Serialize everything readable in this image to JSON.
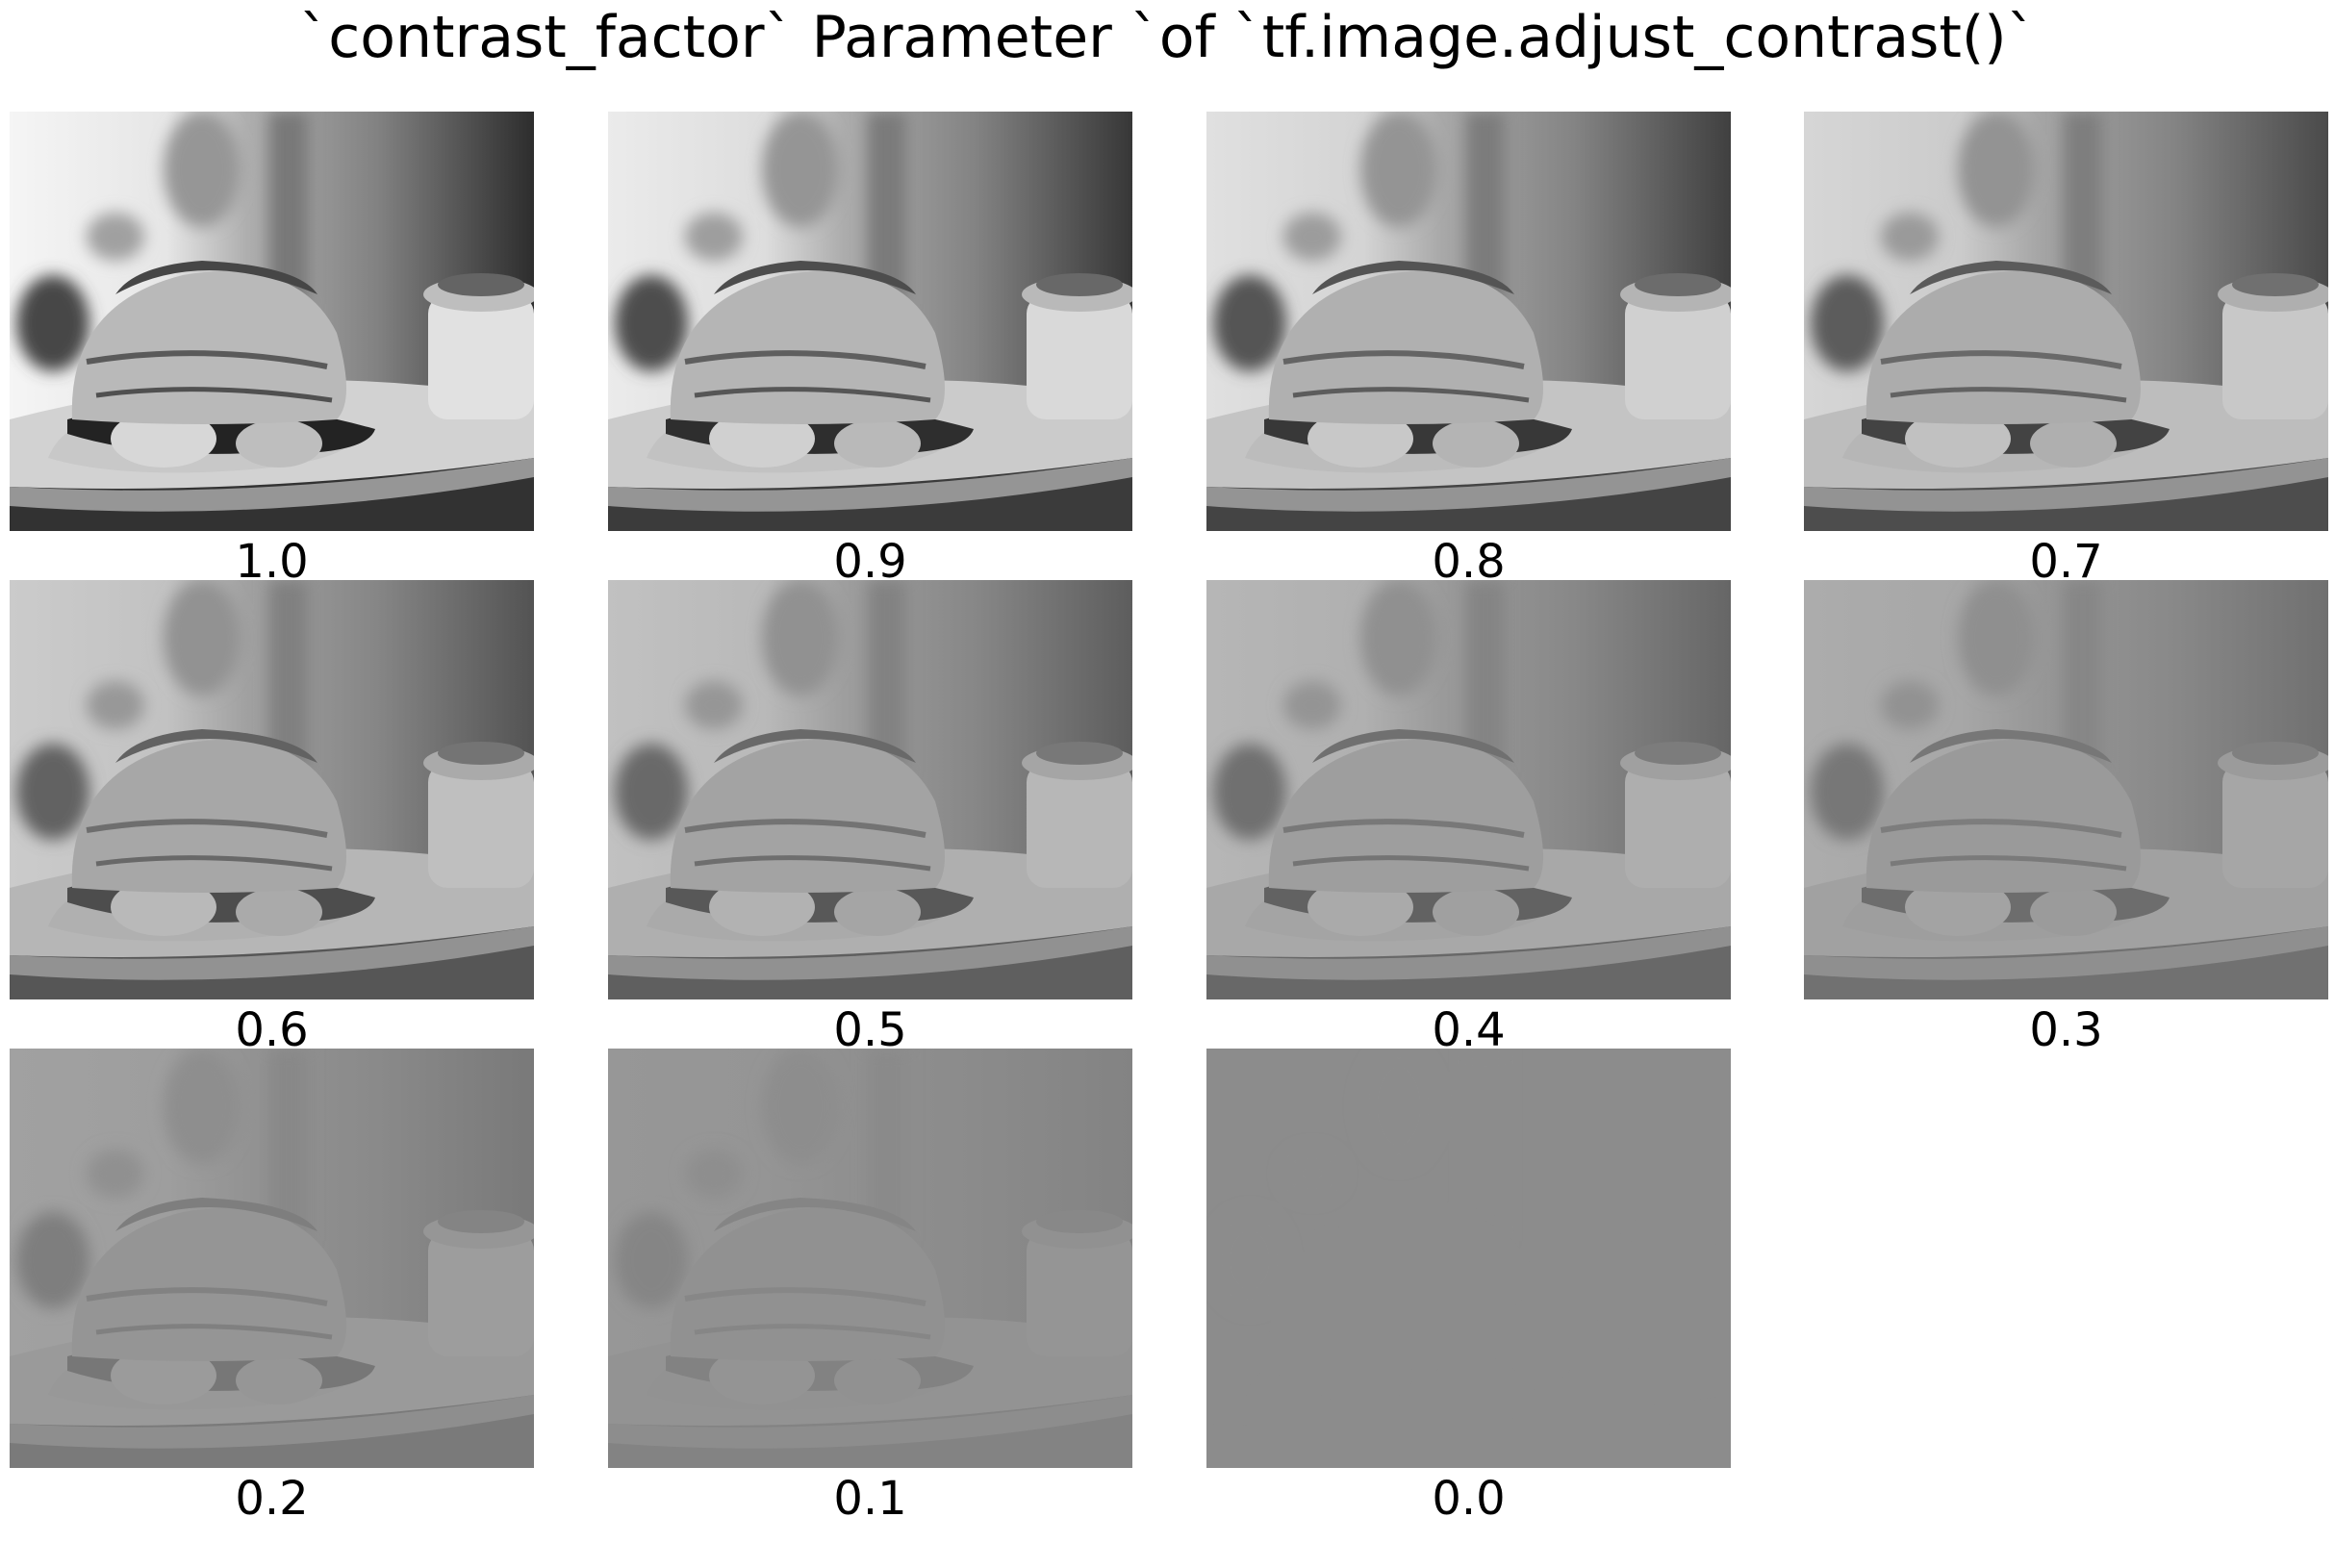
{
  "title": "`contrast_factor` Parameter `of `tf.image.adjust_contrast()`",
  "panels": [
    {
      "label": "1.0",
      "contrast": 1.0
    },
    {
      "label": "0.9",
      "contrast": 0.9
    },
    {
      "label": "0.8",
      "contrast": 0.8
    },
    {
      "label": "0.7",
      "contrast": 0.7
    },
    {
      "label": "0.6",
      "contrast": 0.6
    },
    {
      "label": "0.5",
      "contrast": 0.5
    },
    {
      "label": "0.4",
      "contrast": 0.4
    },
    {
      "label": "0.3",
      "contrast": 0.3
    },
    {
      "label": "0.2",
      "contrast": 0.2
    },
    {
      "label": "0.1",
      "contrast": 0.1
    },
    {
      "label": "0.0",
      "contrast": 0.0
    }
  ],
  "mean_gray": "#8c8c8c"
}
